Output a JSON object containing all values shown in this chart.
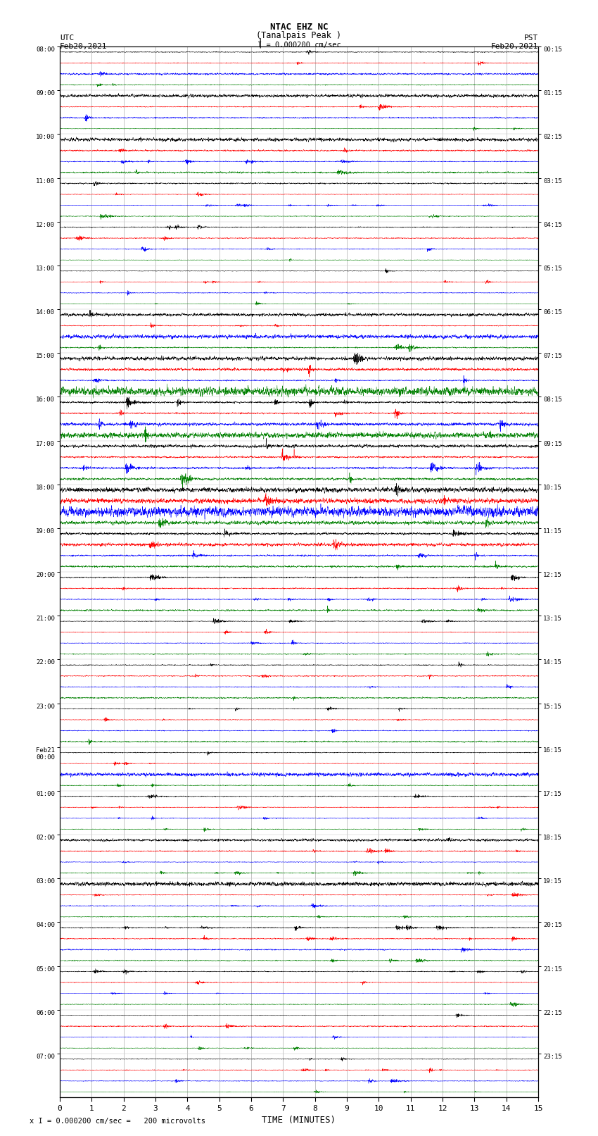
{
  "title_line1": "NTAC EHZ NC",
  "title_line2": "(Tanalpais Peak )",
  "scale_label": "I = 0.000200 cm/sec",
  "utc_label": "UTC",
  "utc_date": "Feb20,2021",
  "pst_label": "PST",
  "pst_date": "Feb20,2021",
  "xlabel": "TIME (MINUTES)",
  "footer": "x I = 0.000200 cm/sec =   200 microvolts",
  "xlim_min": 0,
  "xlim_max": 15,
  "xticks": [
    0,
    1,
    2,
    3,
    4,
    5,
    6,
    7,
    8,
    9,
    10,
    11,
    12,
    13,
    14,
    15
  ],
  "trace_colors": [
    "black",
    "red",
    "blue",
    "green"
  ],
  "bg_color": "#ffffff",
  "num_hour_groups": 24,
  "traces_per_group": 4,
  "seed": 12345,
  "left_labels": [
    "08:00",
    "09:00",
    "10:00",
    "11:00",
    "12:00",
    "13:00",
    "14:00",
    "15:00",
    "16:00",
    "17:00",
    "18:00",
    "19:00",
    "20:00",
    "21:00",
    "22:00",
    "23:00",
    "Feb21\n00:00",
    "01:00",
    "02:00",
    "03:00",
    "04:00",
    "05:00",
    "06:00",
    "07:00"
  ],
  "right_labels": [
    "00:15",
    "01:15",
    "02:15",
    "03:15",
    "04:15",
    "05:15",
    "06:15",
    "07:15",
    "08:15",
    "09:15",
    "10:15",
    "11:15",
    "12:15",
    "13:15",
    "14:15",
    "15:15",
    "16:15",
    "17:15",
    "18:15",
    "19:15",
    "20:15",
    "21:15",
    "22:15",
    "23:15"
  ],
  "group_amplitudes": [
    0.45,
    0.65,
    0.7,
    0.55,
    0.5,
    0.5,
    0.85,
    1.4,
    1.6,
    1.8,
    1.5,
    1.2,
    0.9,
    0.7,
    0.6,
    0.55,
    0.55,
    0.5,
    0.55,
    0.55,
    0.6,
    0.55,
    0.5,
    0.5
  ],
  "grid_color": "#999999",
  "grid_linewidth": 0.5
}
